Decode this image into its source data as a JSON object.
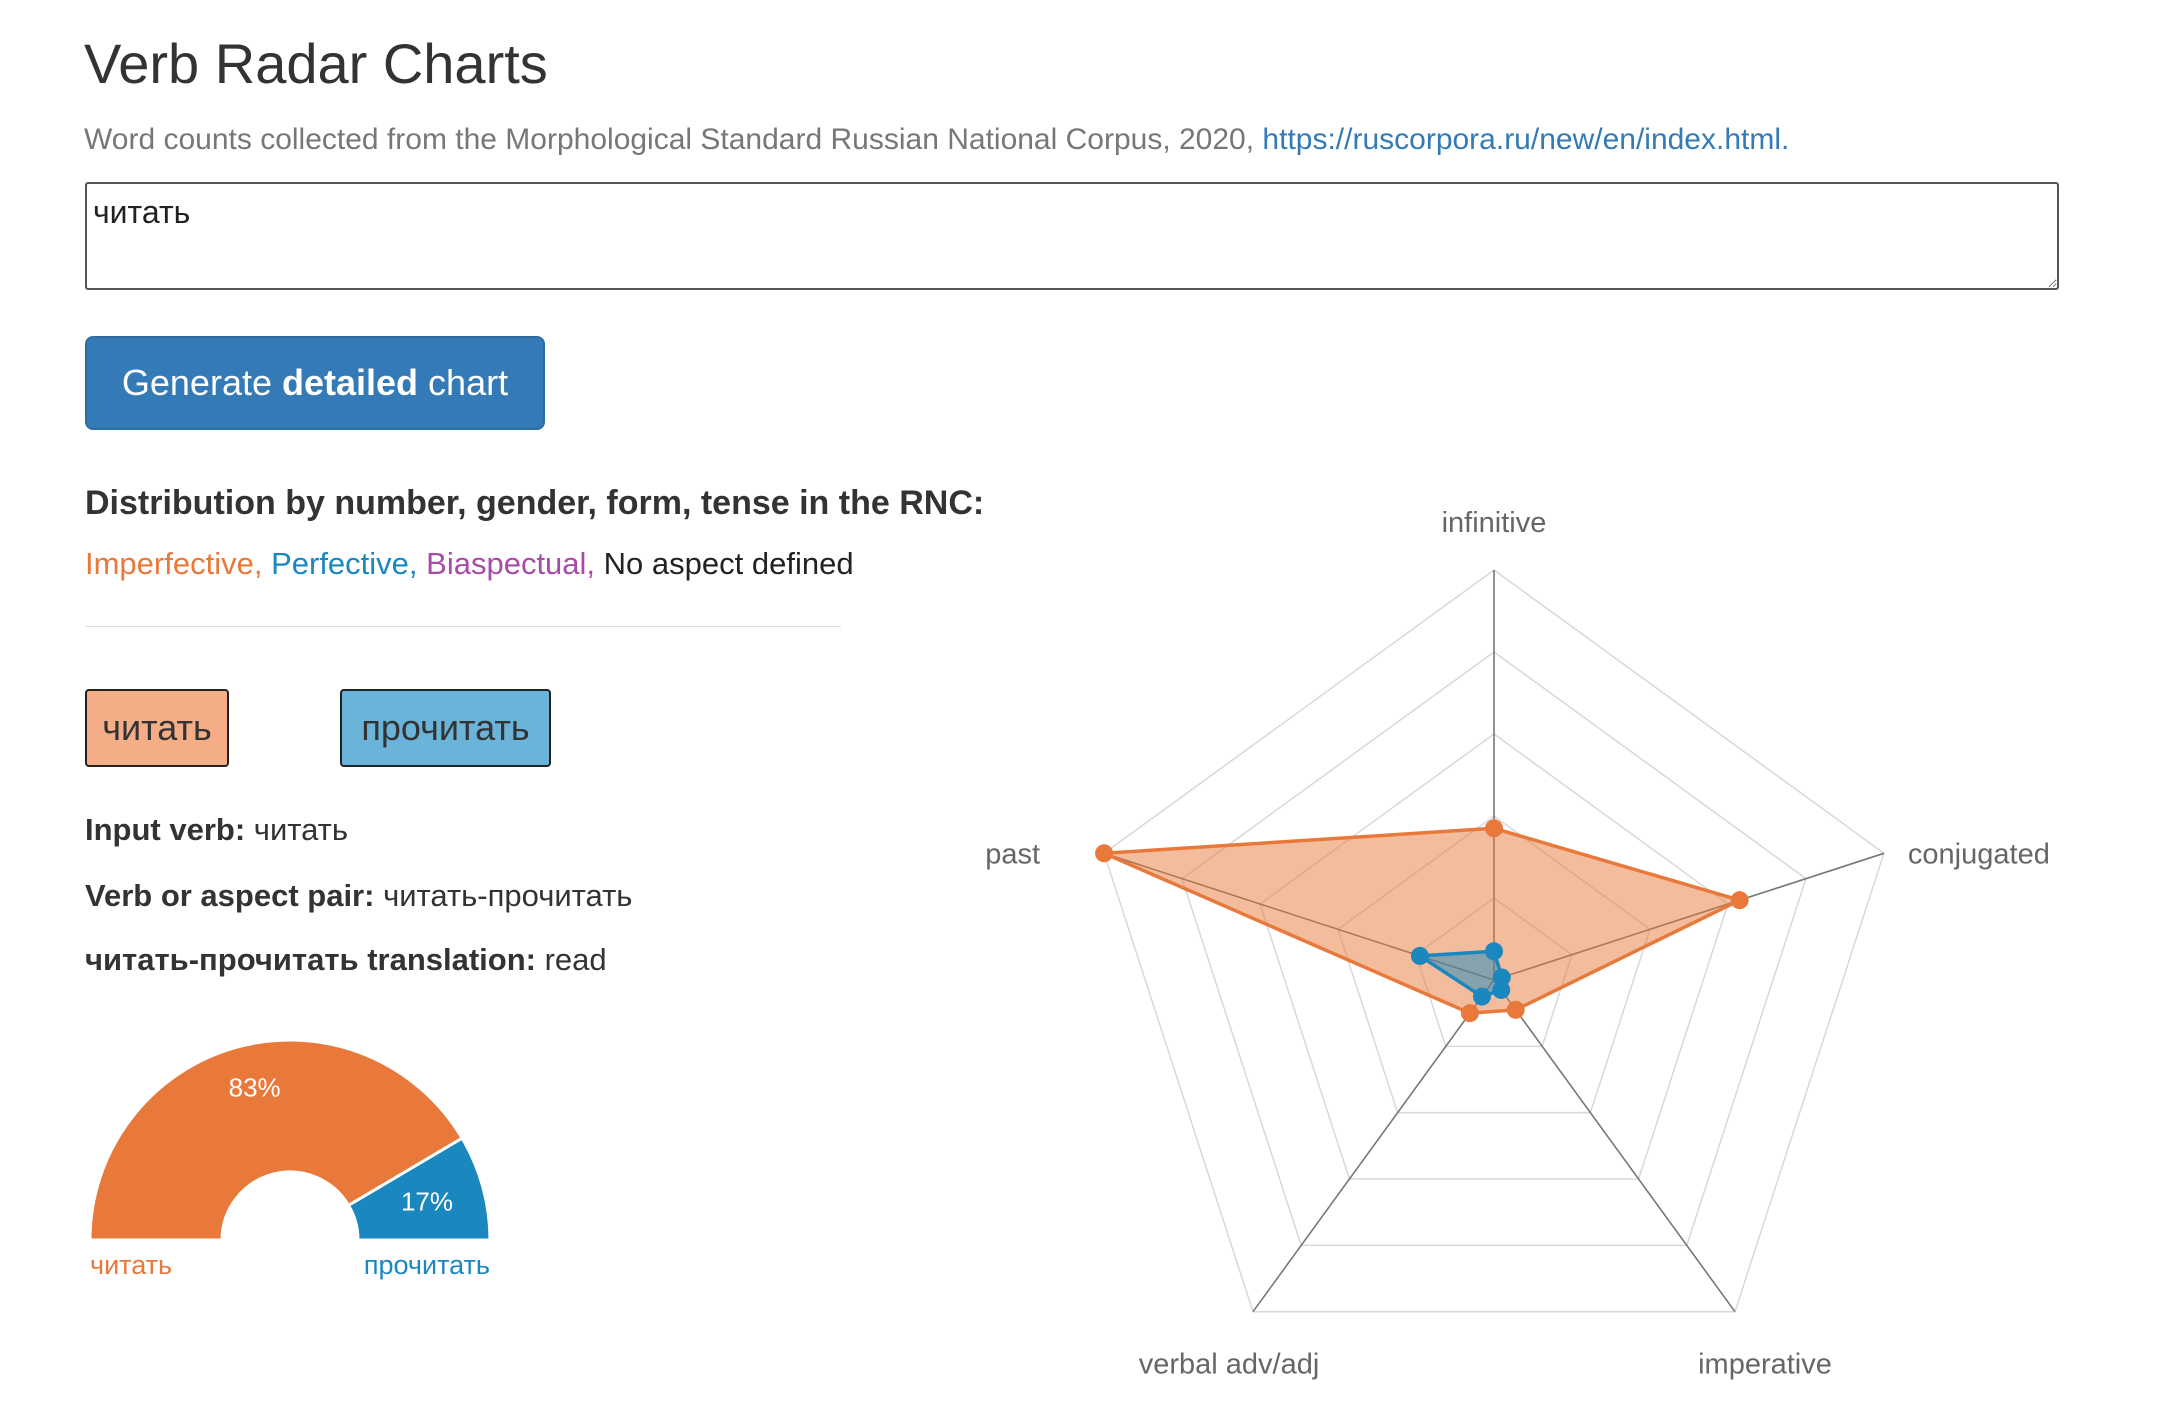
{
  "header": {
    "title": "Verb Radar Charts",
    "subtitle": "Word counts collected from the Morphological Standard Russian National Corpus, 2020,",
    "link_text": "https://ruscorpora.ru/new/en/index.html."
  },
  "input": {
    "value": "читать"
  },
  "generate_button": {
    "prefix": "Generate ",
    "bold": "detailed",
    "suffix": " chart"
  },
  "distribution": {
    "heading": "Distribution by number, gender, form, tense in the RNC:",
    "legend": {
      "imperfective": "Imperfective,",
      "perfective": "Perfective,",
      "biaspectual": "Biaspectual,",
      "none": "No aspect defined"
    }
  },
  "verb_buttons": {
    "imperfective": "читать",
    "perfective": "прочитать"
  },
  "info": {
    "input_verb_label": "Input verb:",
    "input_verb_value": "читать",
    "pair_label": "Verb or aspect pair:",
    "pair_value": "читать-прочитать",
    "translation_label": "читать-прочитать translation:",
    "translation_value": "read"
  },
  "colors": {
    "imperfective": "#e8793a",
    "perfective": "#1a87bf",
    "biaspectual": "#a64ca6"
  },
  "chart_data": [
    {
      "type": "pie",
      "subtype": "half-donut",
      "categories": [
        "читать",
        "прочитать"
      ],
      "values": [
        83,
        17
      ],
      "labels": [
        "83%",
        "17%"
      ]
    },
    {
      "type": "radar",
      "axes": [
        "infinitive",
        "conjugated",
        "imperative",
        "verbal adv/adj",
        "past"
      ],
      "rmax": 1,
      "series": [
        {
          "name": "читать",
          "values": [
            0.37,
            0.63,
            0.09,
            0.1,
            1.0
          ]
        },
        {
          "name": "прочитать",
          "values": [
            0.07,
            0.02,
            0.03,
            0.05,
            0.19
          ]
        }
      ]
    }
  ]
}
